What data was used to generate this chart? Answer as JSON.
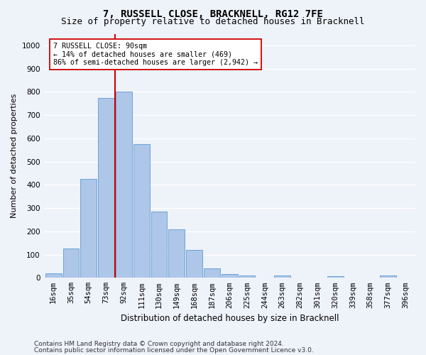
{
  "title": "7, RUSSELL CLOSE, BRACKNELL, RG12 7FE",
  "subtitle": "Size of property relative to detached houses in Bracknell",
  "xlabel": "Distribution of detached houses by size in Bracknell",
  "ylabel": "Number of detached properties",
  "categories": [
    "16sqm",
    "35sqm",
    "54sqm",
    "73sqm",
    "92sqm",
    "111sqm",
    "130sqm",
    "149sqm",
    "168sqm",
    "187sqm",
    "206sqm",
    "225sqm",
    "244sqm",
    "263sqm",
    "282sqm",
    "301sqm",
    "320sqm",
    "339sqm",
    "358sqm",
    "377sqm",
    "396sqm"
  ],
  "values": [
    18,
    125,
    425,
    775,
    800,
    575,
    285,
    210,
    120,
    40,
    15,
    10,
    0,
    10,
    0,
    0,
    8,
    0,
    0,
    10,
    0
  ],
  "bar_color": "#aec6e8",
  "bar_edge_color": "#5b9bd5",
  "vline_index": 4,
  "vline_color": "#cc0000",
  "annotation_text": "7 RUSSELL CLOSE: 90sqm\n← 14% of detached houses are smaller (469)\n86% of semi-detached houses are larger (2,942) →",
  "annotation_box_color": "#ffffff",
  "annotation_box_edge": "#cc0000",
  "ylim": [
    0,
    1050
  ],
  "yticks": [
    0,
    100,
    200,
    300,
    400,
    500,
    600,
    700,
    800,
    900,
    1000
  ],
  "footer_line1": "Contains HM Land Registry data © Crown copyright and database right 2024.",
  "footer_line2": "Contains public sector information licensed under the Open Government Licence v3.0.",
  "bg_color": "#eef2f9",
  "grid_color": "#ffffff",
  "title_fontsize": 10,
  "subtitle_fontsize": 9,
  "axis_fontsize": 8,
  "tick_fontsize": 7.5,
  "footer_fontsize": 6.5
}
